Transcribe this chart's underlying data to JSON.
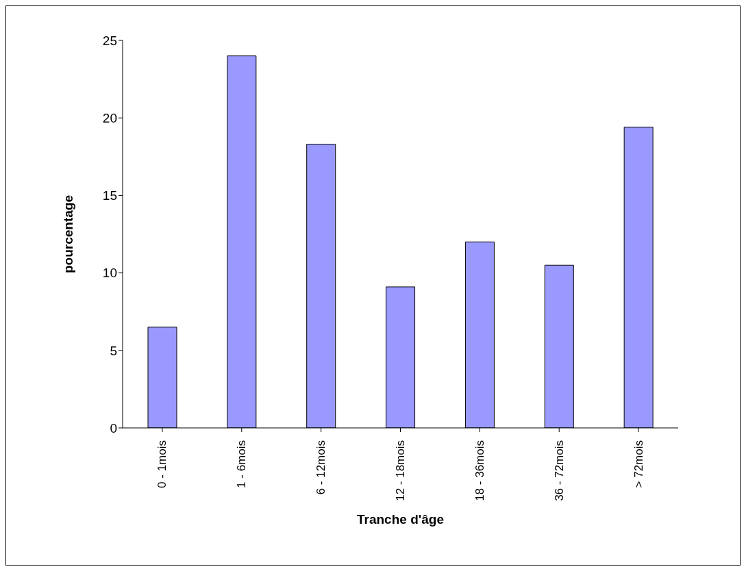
{
  "chart_data": {
    "type": "bar",
    "xlabel": "Tranche d'âge",
    "ylabel": "pourcentage",
    "categories": [
      "0 - 1mois",
      "1 - 6mois",
      "6 - 12mois",
      "12 - 18mois",
      "18 - 36mois",
      "36 - 72mois",
      "> 72mois"
    ],
    "values": [
      6.5,
      24,
      18.3,
      9.1,
      12,
      10.5,
      19.4
    ],
    "color": "#9999ff",
    "ylim": [
      0,
      25
    ],
    "yticks": [
      0,
      5,
      10,
      15,
      20,
      25
    ],
    "grid": false
  }
}
